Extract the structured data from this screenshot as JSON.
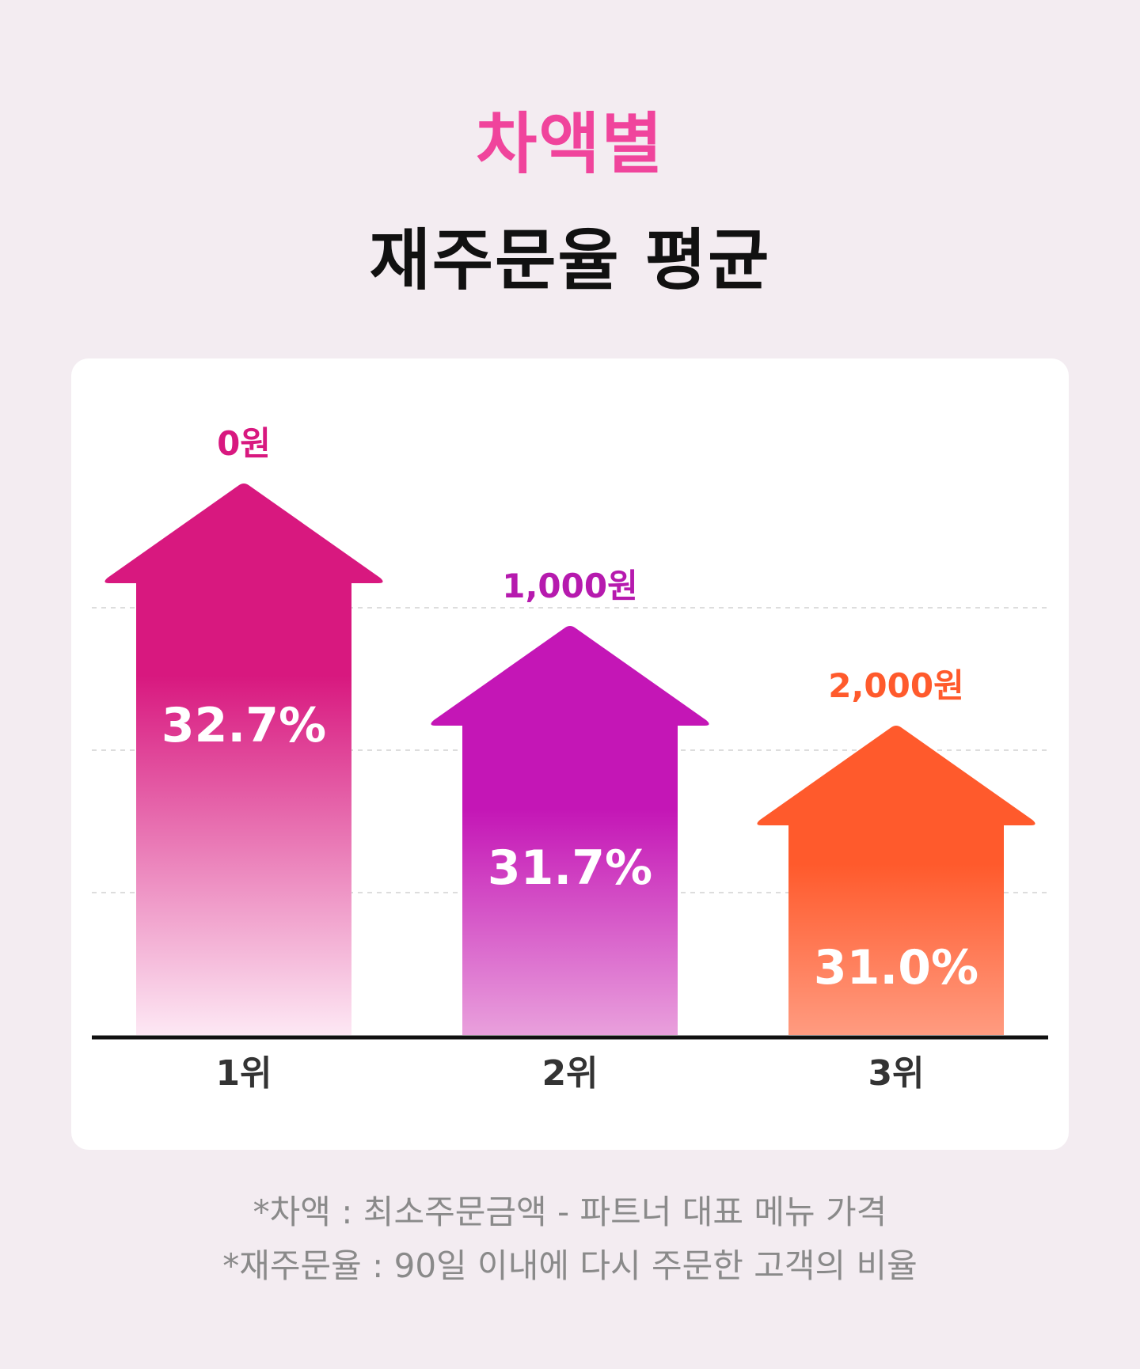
{
  "title": {
    "line1": "차액별",
    "line2": "재주문율 평균"
  },
  "colors": {
    "background": "#f3ecf1",
    "title_accent": "#f0449c",
    "title_main": "#111111",
    "axis": "#111111",
    "gridline": "#dddddd",
    "note_text": "#8a8a8a"
  },
  "chart_data": {
    "type": "bar",
    "style": "arrow-shaped bars",
    "categories": [
      "1위",
      "2위",
      "3위"
    ],
    "values": [
      32.7,
      31.7,
      31.0
    ],
    "value_labels": [
      "32.7%",
      "31.7%",
      "31.0%"
    ],
    "group_labels": [
      "0원",
      "1,000원",
      "2,000원"
    ],
    "bar_colors": [
      "#d8187f",
      "#c416b6",
      "#ff5a2c"
    ],
    "bar_fade_colors": [
      "#fde8f4",
      "#e9a0dc",
      "#ff9b80"
    ],
    "label_colors": [
      "#d8187f",
      "#b61aae",
      "#ff5a2c"
    ],
    "grid": "dashed horizontal",
    "legend": "none"
  },
  "notes": [
    "*차액 : 최소주문금액 - 파트너 대표 메뉴 가격",
    "*재주문율 : 90일 이내에 다시 주문한 고객의 비율"
  ]
}
